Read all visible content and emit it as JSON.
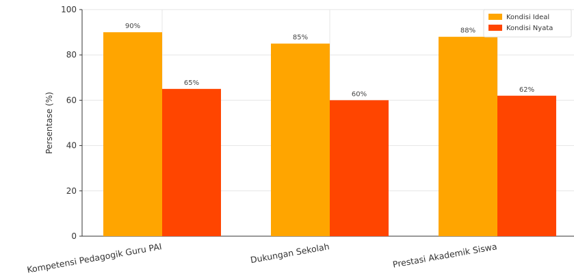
{
  "chart_data": {
    "type": "bar",
    "categories": [
      "Kompetensi Pedagogik Guru PAI",
      "Dukungan Sekolah",
      "Prestasi Akademik Siswa"
    ],
    "series": [
      {
        "name": "Kondisi Ideal",
        "values": [
          90,
          85,
          88
        ],
        "color": "#FFA500",
        "labels": [
          "90%",
          "85%",
          "88%"
        ]
      },
      {
        "name": "Kondisi Nyata",
        "values": [
          65,
          60,
          62
        ],
        "color": "#FF4500",
        "labels": [
          "65%",
          "60%",
          "62%"
        ]
      }
    ],
    "ylabel": "Persentase (%)",
    "ylim": [
      0,
      100
    ],
    "yticks": [
      0,
      20,
      40,
      60,
      80,
      100
    ],
    "grid": true,
    "legend_position": "top-right",
    "category_label_rotation": -10
  }
}
